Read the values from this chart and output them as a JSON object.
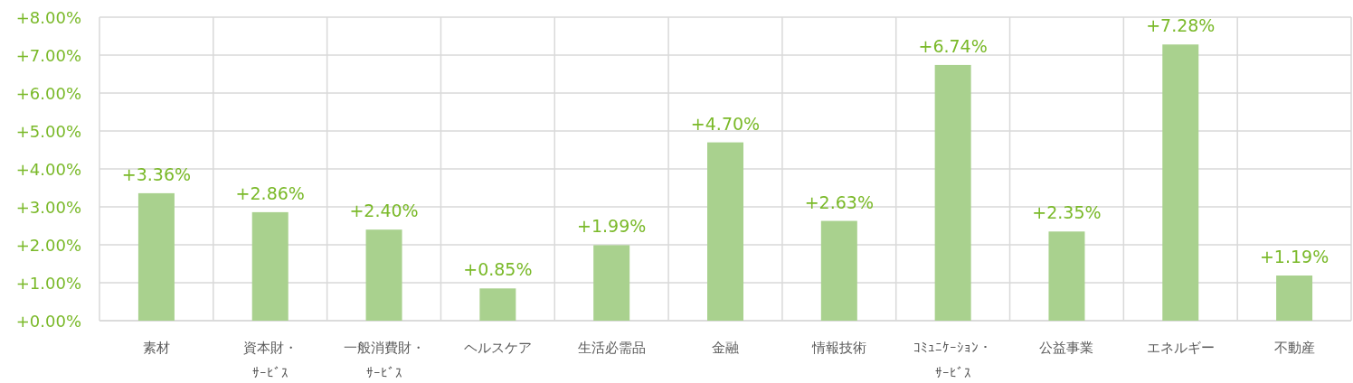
{
  "chart_data": {
    "type": "bar",
    "categories": [
      "素材",
      "資本財・ｻｰﾋﾞｽ",
      "一般消費財・ｻｰﾋﾞｽ",
      "ヘルスケア",
      "生活必需品",
      "金融",
      "情報技術",
      "ｺﾐｭﾆｹｰｼｮﾝ・ｻｰﾋﾞｽ",
      "公益事業",
      "エネルギー",
      "不動産"
    ],
    "values": [
      3.36,
      2.86,
      2.4,
      0.85,
      1.99,
      4.7,
      2.63,
      6.74,
      2.35,
      7.28,
      1.19
    ],
    "value_labels": [
      "+3.36%",
      "+2.86%",
      "+2.40%",
      "+0.85%",
      "+1.99%",
      "+4.70%",
      "+2.63%",
      "+6.74%",
      "+2.35%",
      "+7.28%",
      "+1.19%"
    ],
    "color": "#a9d18e",
    "ylim": [
      0,
      8
    ],
    "yticks": [
      {
        "value": 0,
        "label": "+0.00%"
      },
      {
        "value": 1,
        "label": "+1.00%"
      },
      {
        "value": 2,
        "label": "+2.00%"
      },
      {
        "value": 3,
        "label": "+3.00%"
      },
      {
        "value": 4,
        "label": "+4.00%"
      },
      {
        "value": 5,
        "label": "+5.00%"
      },
      {
        "value": 6,
        "label": "+6.00%"
      },
      {
        "value": 7,
        "label": "+7.00%"
      },
      {
        "value": 8,
        "label": "+8.00%"
      }
    ],
    "grid": true
  }
}
